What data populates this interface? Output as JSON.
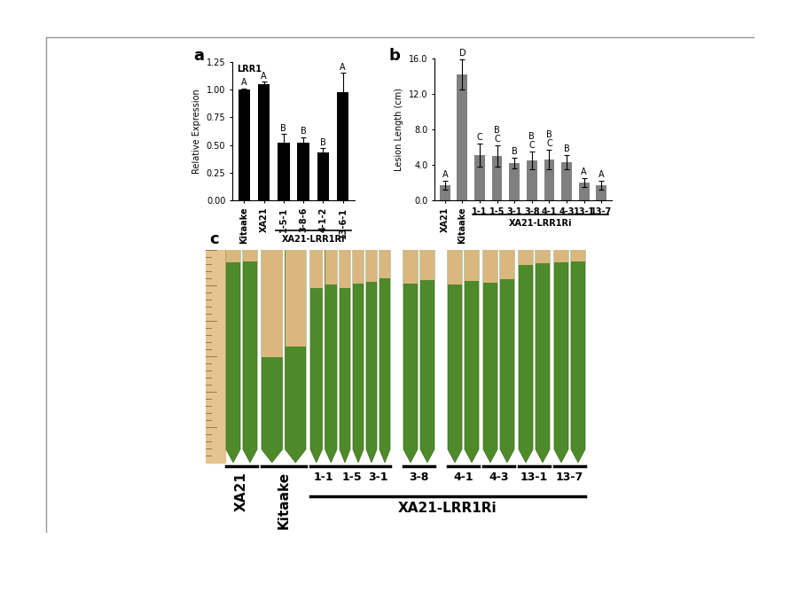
{
  "chart_data": [
    {
      "type": "bar",
      "panel": "a",
      "title": "LRR1",
      "y_label": "Relative Expression",
      "categories": [
        "Kitaake",
        "XA21",
        "1-5-1",
        "3-8-6",
        "4-1-2",
        "13-6-1"
      ],
      "values": [
        1.0,
        1.05,
        0.52,
        0.52,
        0.43,
        0.98
      ],
      "errors": [
        0.01,
        0.02,
        0.08,
        0.05,
        0.04,
        0.17
      ],
      "letters": [
        [
          "A"
        ],
        [
          "A"
        ],
        [
          "B"
        ],
        [
          "B"
        ],
        [
          "B"
        ],
        [
          "A"
        ]
      ],
      "color": "#000000",
      "group_label": "XA21-LRR1Ri",
      "group_categories": [
        "1-5-1",
        "3-8-6",
        "4-1-2",
        "13-6-1"
      ],
      "ylim": [
        0,
        1.25
      ],
      "yticks": [
        {
          "value": 0,
          "label": "0.00"
        },
        {
          "value": 0.25,
          "label": "0.25"
        },
        {
          "value": 0.5,
          "label": "0.50"
        },
        {
          "value": 0.75,
          "label": "0.75"
        },
        {
          "value": 1.0,
          "label": "1.00"
        },
        {
          "value": 1.25,
          "label": "1.25"
        }
      ],
      "grid": false
    },
    {
      "type": "bar",
      "panel": "b",
      "y_label": "Lesion Length (cm)",
      "categories": [
        "XA21",
        "Kitaake",
        "1-1",
        "1-5",
        "3-1",
        "3-8",
        "4-1",
        "4-3",
        "13-1",
        "13-7"
      ],
      "values": [
        1.7,
        14.2,
        5.1,
        5.0,
        4.2,
        4.5,
        4.6,
        4.3,
        2.0,
        1.7
      ],
      "errors": [
        0.5,
        1.7,
        1.3,
        1.2,
        0.6,
        1.0,
        1.1,
        0.8,
        0.5,
        0.5
      ],
      "letters": [
        [
          "A"
        ],
        [
          "D"
        ],
        [
          "C"
        ],
        [
          "B",
          "C"
        ],
        [
          "B"
        ],
        [
          "B",
          "C"
        ],
        [
          "B",
          "C"
        ],
        [
          "B"
        ],
        [
          "A"
        ],
        [
          "A"
        ]
      ],
      "color": "#808080",
      "group_label": "XA21-LRR1Ri",
      "group_categories": [
        "1-1",
        "1-5",
        "3-1",
        "3-8",
        "4-1",
        "4-3",
        "13-1",
        "13-7"
      ],
      "ylim": [
        0,
        16
      ],
      "yticks": [
        {
          "value": 0,
          "label": "0.0"
        },
        {
          "value": 4,
          "label": "4.0"
        },
        {
          "value": 8,
          "label": "8.0"
        },
        {
          "value": 12,
          "label": "12.0"
        },
        {
          "value": 16,
          "label": "16.0"
        }
      ],
      "grid": false
    }
  ],
  "photo": {
    "panel": "c",
    "groups": [
      "XA21",
      "Kitaake",
      "1-1",
      "1-5",
      "3-1",
      "3-8",
      "4-1",
      "4-3",
      "13-1",
      "13-7"
    ],
    "group_label": "XA21-LRR1Ri",
    "group_categories": [
      "1-1",
      "1-5",
      "3-1",
      "3-8",
      "4-1",
      "4-3",
      "13-1",
      "13-7"
    ]
  }
}
